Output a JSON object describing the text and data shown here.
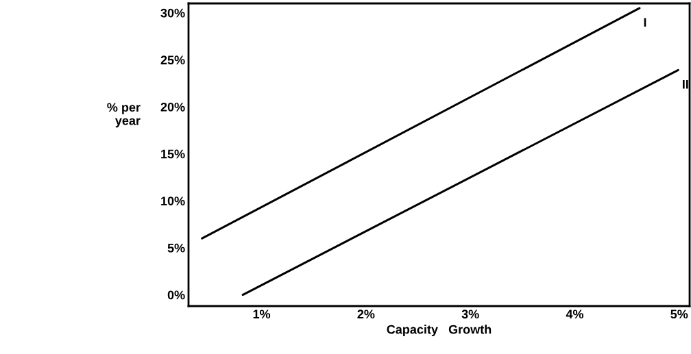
{
  "chart_data": {
    "type": "line",
    "xlabel": "Capacity   Growth",
    "ylabel": "% per\nyear",
    "xlim": [
      0.3,
      5.1
    ],
    "ylim": [
      -1.2,
      31
    ],
    "xticks": [
      {
        "value": 1,
        "label": "1%"
      },
      {
        "value": 2,
        "label": "2%"
      },
      {
        "value": 3,
        "label": "3%"
      },
      {
        "value": 4,
        "label": "4%"
      },
      {
        "value": 5,
        "label": "5%"
      }
    ],
    "yticks": [
      {
        "value": 0,
        "label": "0%"
      },
      {
        "value": 5,
        "label": "5%"
      },
      {
        "value": 10,
        "label": "10%"
      },
      {
        "value": 15,
        "label": "15%"
      },
      {
        "value": 20,
        "label": "20%"
      },
      {
        "value": 25,
        "label": "25%"
      },
      {
        "value": 30,
        "label": "30%"
      }
    ],
    "grid": false,
    "legend": false,
    "marker": "none",
    "line_style": "solid",
    "series": [
      {
        "name": "I",
        "color": "#000000",
        "x": [
          0.43,
          4.62
        ],
        "values": [
          6.0,
          30.5
        ]
      },
      {
        "name": "II",
        "color": "#000000",
        "x": [
          0.82,
          4.99
        ],
        "values": [
          0.0,
          23.9
        ]
      }
    ]
  }
}
